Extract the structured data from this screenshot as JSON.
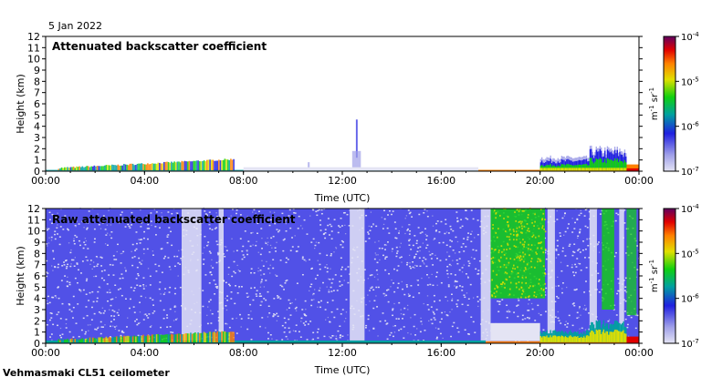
{
  "date": "5 Jan 2022",
  "instrument": "Vehmasmaki CL51 ceilometer",
  "colorbar": {
    "unit_base": "m",
    "unit_exp1": "-1",
    "unit_mid": " sr",
    "unit_exp2": "-1",
    "ticks": [
      {
        "base": "10",
        "exp": "-4",
        "value": 0.0001
      },
      {
        "base": "10",
        "exp": "-5",
        "value": 1e-05
      },
      {
        "base": "10",
        "exp": "-6",
        "value": 1e-06
      },
      {
        "base": "10",
        "exp": "-7",
        "value": 1e-07
      }
    ],
    "scale": "log",
    "colors": [
      "#e4e4f4",
      "#a0a0e8",
      "#2020e0",
      "#00a0a0",
      "#10d010",
      "#e0e000",
      "#ff8000",
      "#e00000",
      "#600060"
    ]
  },
  "chart_data": [
    {
      "type": "heatmap",
      "title": "Attenuated backscatter coefficient",
      "xlabel": "Time (UTC)",
      "ylabel": "Height (km)",
      "xlim": [
        0,
        24
      ],
      "ylim": [
        0,
        12
      ],
      "x_ticks": [
        "00:00",
        "04:00",
        "08:00",
        "12:00",
        "16:00",
        "20:00",
        "00:00"
      ],
      "y_ticks": [
        "0",
        "1",
        "2",
        "3",
        "4",
        "5",
        "6",
        "7",
        "8",
        "9",
        "10",
        "11",
        "12"
      ],
      "color_scale": "log",
      "clim": [
        1e-07,
        0.0001
      ]
    },
    {
      "type": "heatmap",
      "title": "Raw attenuated backscatter coefficient",
      "xlabel": "Time (UTC)",
      "ylabel": "Height (km)",
      "xlim": [
        0,
        24
      ],
      "ylim": [
        0,
        12
      ],
      "x_ticks": [
        "00:00",
        "04:00",
        "08:00",
        "12:00",
        "16:00",
        "20:00",
        "00:00"
      ],
      "y_ticks": [
        "0",
        "1",
        "2",
        "3",
        "4",
        "5",
        "6",
        "7",
        "8",
        "9",
        "10",
        "11",
        "12"
      ],
      "color_scale": "log",
      "clim": [
        1e-07,
        0.0001
      ]
    }
  ]
}
